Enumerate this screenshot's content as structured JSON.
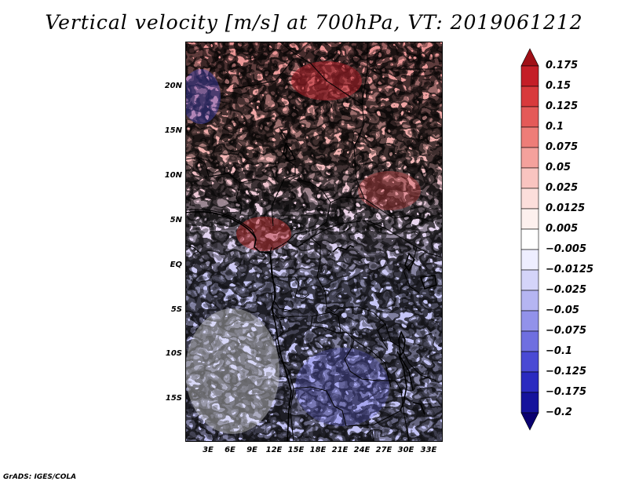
{
  "title": "Vertical velocity [m/s] at 700hPa, VT: 2019061212",
  "y_axis_labels": [
    "20N",
    "15N",
    "10N",
    "5N",
    "EQ",
    "5S",
    "10S",
    "15S"
  ],
  "x_axis_labels": [
    "3E",
    "6E",
    "9E",
    "12E",
    "15E",
    "18E",
    "21E",
    "24E",
    "27E",
    "30E",
    "33E"
  ],
  "map_data": {
    "type": "heatmap",
    "variable": "Vertical velocity",
    "units": "m/s",
    "level": "700hPa",
    "valid_time": "2019061212",
    "lon_range": [
      0,
      35
    ],
    "lat_range": [
      -20,
      25
    ]
  },
  "colorbar": {
    "labels": [
      "0.175",
      "0.15",
      "0.125",
      "0.1",
      "0.075",
      "0.05",
      "0.025",
      "0.0125",
      "0.005",
      "−0.005",
      "−0.0125",
      "−0.025",
      "−0.05",
      "−0.075",
      "−0.1",
      "−0.125",
      "−0.175",
      "−0.2"
    ],
    "colors": [
      "#a01017",
      "#c41e27",
      "#d83a3c",
      "#e45a58",
      "#ee7d78",
      "#f4a19c",
      "#f9c4c0",
      "#fcdedb",
      "#fdf0ee",
      "#ffffff",
      "#eeeeff",
      "#d4d4f9",
      "#b5b5f2",
      "#9292ea",
      "#6f6fe0",
      "#4a4ad4",
      "#2b2bc0",
      "#15139c",
      "#0a0070"
    ]
  },
  "footer": "GrADS: IGES/COLA"
}
